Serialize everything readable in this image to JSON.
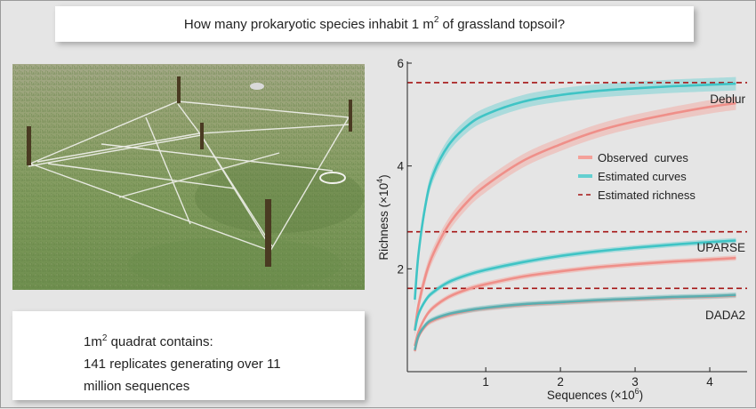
{
  "title": {
    "prefix": "How many prokaryotic species inhabit 1 m",
    "sup": "2",
    "suffix": " of grassland topsoil?"
  },
  "info": {
    "line1_prefix": "1m",
    "line1_sup": "2",
    "line1_suffix": " quadrat contains:",
    "line2": "141 replicates generating over 11",
    "line3": "million sequences"
  },
  "colors": {
    "observed": "#f4a19a",
    "observed_line": "#ef8f89",
    "estimated": "#63cfd0",
    "estimated_line": "#3fc4c5",
    "estimated_dada2": "#5aaeb0",
    "richness": "#a51515",
    "background": "#e5e5e5"
  },
  "chart_data": {
    "type": "line",
    "xlabel": "Sequences (×10",
    "xlabel_sup": "6",
    "xlabel_suffix": ")",
    "ylabel": "Richness (×10",
    "ylabel_sup": "4",
    "ylabel_suffix": ")",
    "xlim": [
      -0.05,
      4.5
    ],
    "ylim": [
      0,
      6
    ],
    "x_ticks": [
      1,
      2,
      3,
      4
    ],
    "y_ticks": [
      2,
      4,
      6
    ],
    "x_tick_labels": [
      "1",
      "2",
      "3",
      "4"
    ],
    "y_tick_labels": [
      "2",
      "4",
      "6"
    ],
    "grid": false,
    "legend_position": "right-middle",
    "legend": [
      "Observed  curves",
      "Estimated curves",
      "Estimated richness"
    ],
    "groups": [
      {
        "label": "Deblur",
        "richness": 5.62,
        "observed": {
          "x": [
            0.05,
            0.1,
            0.2,
            0.3,
            0.5,
            0.75,
            1.0,
            1.5,
            2.0,
            2.5,
            3.0,
            3.5,
            4.0,
            4.35
          ],
          "y": [
            0.8,
            1.3,
            1.9,
            2.3,
            2.85,
            3.3,
            3.62,
            4.1,
            4.42,
            4.68,
            4.87,
            5.02,
            5.15,
            5.22
          ]
        },
        "estimated": {
          "x": [
            0.05,
            0.1,
            0.2,
            0.3,
            0.5,
            0.75,
            1.0,
            1.5,
            2.0,
            2.5,
            3.0,
            3.5,
            4.0,
            4.35
          ],
          "y": [
            1.4,
            2.3,
            3.3,
            3.85,
            4.4,
            4.78,
            5.0,
            5.25,
            5.38,
            5.46,
            5.51,
            5.55,
            5.58,
            5.6
          ]
        }
      },
      {
        "label": "UPARSE",
        "richness": 2.72,
        "observed": {
          "x": [
            0.05,
            0.1,
            0.2,
            0.3,
            0.5,
            0.75,
            1.0,
            1.5,
            2.0,
            2.5,
            3.0,
            3.5,
            4.0,
            4.35
          ],
          "y": [
            0.5,
            0.78,
            1.08,
            1.25,
            1.45,
            1.6,
            1.7,
            1.85,
            1.95,
            2.03,
            2.09,
            2.14,
            2.18,
            2.21
          ]
        },
        "estimated": {
          "x": [
            0.05,
            0.1,
            0.2,
            0.3,
            0.5,
            0.75,
            1.0,
            1.5,
            2.0,
            2.5,
            3.0,
            3.5,
            4.0,
            4.35
          ],
          "y": [
            0.8,
            1.12,
            1.4,
            1.55,
            1.74,
            1.88,
            1.98,
            2.13,
            2.25,
            2.34,
            2.41,
            2.47,
            2.52,
            2.55
          ]
        }
      },
      {
        "label": "DADA2",
        "richness": 1.62,
        "observed": {
          "x": [
            0.05,
            0.1,
            0.2,
            0.3,
            0.5,
            0.75,
            1.0,
            1.5,
            2.0,
            2.5,
            3.0,
            3.5,
            4.0,
            4.35
          ],
          "y": [
            0.4,
            0.68,
            0.9,
            1.0,
            1.1,
            1.18,
            1.23,
            1.3,
            1.34,
            1.38,
            1.41,
            1.44,
            1.46,
            1.48
          ]
        },
        "estimated": {
          "x": [
            0.05,
            0.1,
            0.2,
            0.3,
            0.5,
            0.75,
            1.0,
            1.5,
            2.0,
            2.5,
            3.0,
            3.5,
            4.0,
            4.35
          ],
          "y": [
            0.42,
            0.7,
            0.92,
            1.02,
            1.12,
            1.19,
            1.24,
            1.31,
            1.35,
            1.39,
            1.42,
            1.45,
            1.47,
            1.49
          ]
        }
      }
    ]
  }
}
